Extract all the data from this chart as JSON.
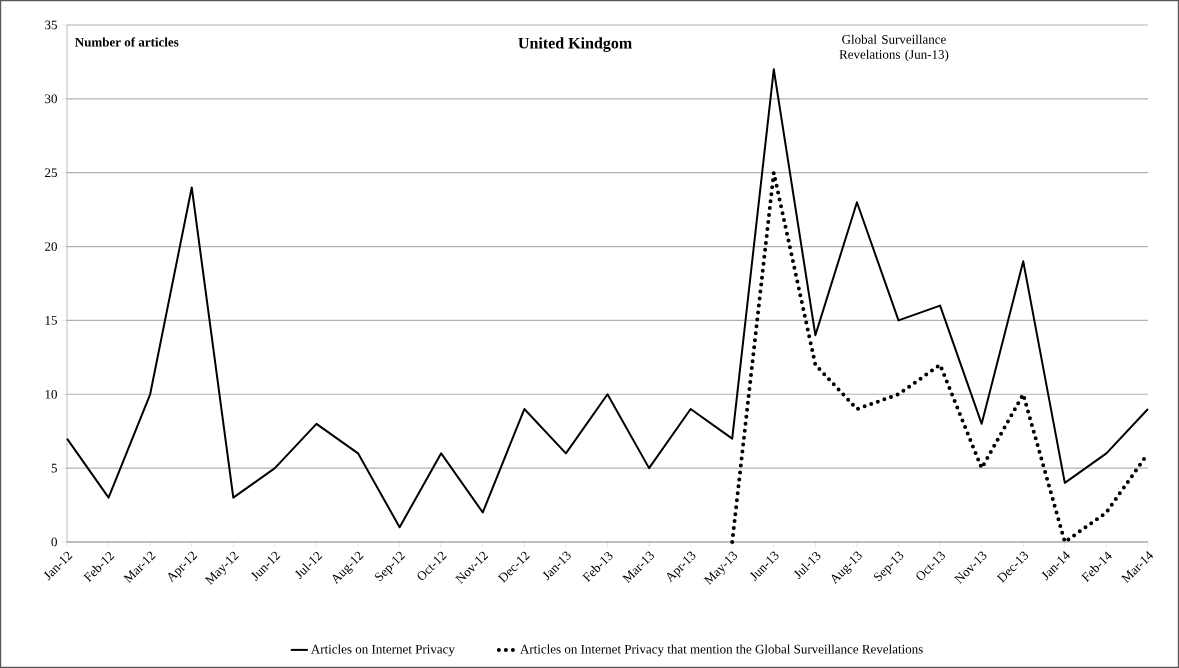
{
  "chart_data": {
    "type": "line",
    "title": "United Kindgom",
    "ylabel": "Number of articles",
    "categories": [
      "Jan-12",
      "Feb-12",
      "Mar-12",
      "Apr-12",
      "May-12",
      "Jun-12",
      "Jul-12",
      "Aug-12",
      "Sep-12",
      "Oct-12",
      "Nov-12",
      "Dec-12",
      "Jan-13",
      "Feb-13",
      "Mar-13",
      "Apr-13",
      "May-13",
      "Jun-13",
      "Jul-13",
      "Aug-13",
      "Sep-13",
      "Oct-13",
      "Nov-13",
      "Dec-13",
      "Jan-14",
      "Feb-14",
      "Mar-14"
    ],
    "series": [
      {
        "name": "Articles on Internet Privacy",
        "color": "#000000",
        "line_style": "solid",
        "values": [
          7,
          3,
          10,
          24,
          3,
          5,
          8,
          6,
          1,
          6,
          2,
          9,
          6,
          10,
          5,
          9,
          7,
          32,
          14,
          23,
          15,
          16,
          8,
          19,
          4,
          6,
          9
        ]
      },
      {
        "name": "Articles on Internet Privacy that mention the Global Surveillance Revelations",
        "color": "#000000",
        "line_style": "dotted",
        "values": [
          null,
          null,
          null,
          null,
          null,
          null,
          null,
          null,
          null,
          null,
          null,
          null,
          null,
          null,
          null,
          null,
          0,
          25,
          12,
          9,
          10,
          12,
          5,
          10,
          0,
          2,
          6
        ]
      }
    ],
    "ylim": [
      0,
      35
    ],
    "yticks": [
      0,
      5,
      10,
      15,
      20,
      25,
      30,
      35
    ],
    "grid": "y",
    "legend": "bottom",
    "marker": "none",
    "annotations": [
      "Global Surveillance Revelations (Jun-13)"
    ]
  }
}
